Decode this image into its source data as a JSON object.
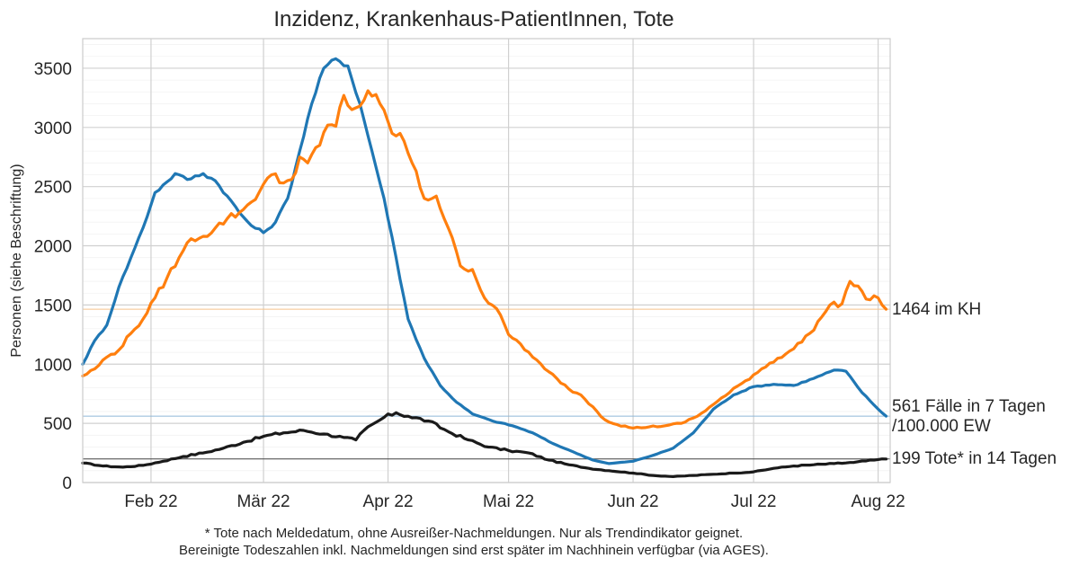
{
  "chart_data": {
    "type": "line",
    "title": "Inzidenz, Krankenhaus-PatientInnen, Tote",
    "ylabel": "Personen (siehe Beschriftung)",
    "xlabel": "",
    "x_start": "2022-01-15",
    "x_end": "2022-08-04",
    "ylim": [
      0,
      3750
    ],
    "y_ticks": [
      0,
      500,
      1000,
      1500,
      2000,
      2500,
      3000,
      3500
    ],
    "x_ticks": [
      {
        "date": "2022-02-01",
        "label": "Feb 22"
      },
      {
        "date": "2022-03-01",
        "label": "Mär 22"
      },
      {
        "date": "2022-04-01",
        "label": "Apr 22"
      },
      {
        "date": "2022-05-01",
        "label": "Mai 22"
      },
      {
        "date": "2022-06-01",
        "label": "Jun 22"
      },
      {
        "date": "2022-07-01",
        "label": "Jul 22"
      },
      {
        "date": "2022-08-01",
        "label": "Aug 22"
      }
    ],
    "grid": true,
    "colors": {
      "inzidenz": "#1f77b4",
      "kh": "#ff7f0e",
      "tote": "#1a1a1a"
    },
    "series": [
      {
        "key": "inzidenz",
        "points": [
          [
            "2022-01-15",
            1000
          ],
          [
            "2022-01-18",
            1200
          ],
          [
            "2022-01-21",
            1330
          ],
          [
            "2022-01-24",
            1650
          ],
          [
            "2022-01-27",
            1900
          ],
          [
            "2022-01-30",
            2150
          ],
          [
            "2022-02-02",
            2450
          ],
          [
            "2022-02-05",
            2540
          ],
          [
            "2022-02-07",
            2610
          ],
          [
            "2022-02-10",
            2560
          ],
          [
            "2022-02-14",
            2610
          ],
          [
            "2022-02-17",
            2550
          ],
          [
            "2022-02-20",
            2420
          ],
          [
            "2022-02-23",
            2280
          ],
          [
            "2022-02-26",
            2170
          ],
          [
            "2022-03-01",
            2110
          ],
          [
            "2022-03-04",
            2200
          ],
          [
            "2022-03-07",
            2400
          ],
          [
            "2022-03-10",
            2800
          ],
          [
            "2022-03-13",
            3200
          ],
          [
            "2022-03-16",
            3500
          ],
          [
            "2022-03-19",
            3580
          ],
          [
            "2022-03-22",
            3520
          ],
          [
            "2022-03-25",
            3200
          ],
          [
            "2022-03-28",
            2800
          ],
          [
            "2022-03-31",
            2400
          ],
          [
            "2022-04-03",
            1900
          ],
          [
            "2022-04-06",
            1380
          ],
          [
            "2022-04-10",
            1050
          ],
          [
            "2022-04-14",
            820
          ],
          [
            "2022-04-18",
            680
          ],
          [
            "2022-04-22",
            580
          ],
          [
            "2022-04-27",
            520
          ],
          [
            "2022-05-02",
            480
          ],
          [
            "2022-05-07",
            420
          ],
          [
            "2022-05-12",
            330
          ],
          [
            "2022-05-17",
            260
          ],
          [
            "2022-05-22",
            190
          ],
          [
            "2022-05-26",
            160
          ],
          [
            "2022-06-01",
            180
          ],
          [
            "2022-06-06",
            230
          ],
          [
            "2022-06-11",
            290
          ],
          [
            "2022-06-16",
            420
          ],
          [
            "2022-06-21",
            620
          ],
          [
            "2022-06-26",
            740
          ],
          [
            "2022-07-01",
            810
          ],
          [
            "2022-07-06",
            830
          ],
          [
            "2022-07-11",
            820
          ],
          [
            "2022-07-16",
            880
          ],
          [
            "2022-07-21",
            950
          ],
          [
            "2022-07-24",
            940
          ],
          [
            "2022-07-28",
            760
          ],
          [
            "2022-08-01",
            620
          ],
          [
            "2022-08-03",
            561
          ]
        ]
      },
      {
        "key": "kh",
        "points": [
          [
            "2022-01-15",
            900
          ],
          [
            "2022-01-18",
            960
          ],
          [
            "2022-01-21",
            1060
          ],
          [
            "2022-01-24",
            1120
          ],
          [
            "2022-01-27",
            1260
          ],
          [
            "2022-01-30",
            1380
          ],
          [
            "2022-02-02",
            1560
          ],
          [
            "2022-02-05",
            1730
          ],
          [
            "2022-02-08",
            1900
          ],
          [
            "2022-02-11",
            2060
          ],
          [
            "2022-02-14",
            2080
          ],
          [
            "2022-02-17",
            2150
          ],
          [
            "2022-02-20",
            2230
          ],
          [
            "2022-02-23",
            2280
          ],
          [
            "2022-02-26",
            2370
          ],
          [
            "2022-03-01",
            2520
          ],
          [
            "2022-03-03",
            2600
          ],
          [
            "2022-03-06",
            2530
          ],
          [
            "2022-03-08",
            2560
          ],
          [
            "2022-03-10",
            2750
          ],
          [
            "2022-03-12",
            2700
          ],
          [
            "2022-03-15",
            2850
          ],
          [
            "2022-03-17",
            3020
          ],
          [
            "2022-03-19",
            3010
          ],
          [
            "2022-03-21",
            3270
          ],
          [
            "2022-03-23",
            3150
          ],
          [
            "2022-03-25",
            3180
          ],
          [
            "2022-03-27",
            3310
          ],
          [
            "2022-03-30",
            3200
          ],
          [
            "2022-04-02",
            2950
          ],
          [
            "2022-04-04",
            2950
          ],
          [
            "2022-04-07",
            2700
          ],
          [
            "2022-04-10",
            2400
          ],
          [
            "2022-04-13",
            2420
          ],
          [
            "2022-04-16",
            2150
          ],
          [
            "2022-04-19",
            1830
          ],
          [
            "2022-04-22",
            1800
          ],
          [
            "2022-04-25",
            1560
          ],
          [
            "2022-04-28",
            1470
          ],
          [
            "2022-05-01",
            1250
          ],
          [
            "2022-05-04",
            1170
          ],
          [
            "2022-05-07",
            1060
          ],
          [
            "2022-05-10",
            960
          ],
          [
            "2022-05-13",
            880
          ],
          [
            "2022-05-16",
            790
          ],
          [
            "2022-05-19",
            740
          ],
          [
            "2022-05-22",
            640
          ],
          [
            "2022-05-25",
            530
          ],
          [
            "2022-05-28",
            490
          ],
          [
            "2022-06-01",
            460
          ],
          [
            "2022-06-05",
            470
          ],
          [
            "2022-06-09",
            480
          ],
          [
            "2022-06-13",
            500
          ],
          [
            "2022-06-17",
            560
          ],
          [
            "2022-06-21",
            660
          ],
          [
            "2022-06-25",
            760
          ],
          [
            "2022-06-29",
            860
          ],
          [
            "2022-07-03",
            960
          ],
          [
            "2022-07-07",
            1050
          ],
          [
            "2022-07-11",
            1130
          ],
          [
            "2022-07-15",
            1260
          ],
          [
            "2022-07-18",
            1400
          ],
          [
            "2022-07-20",
            1500
          ],
          [
            "2022-07-23",
            1510
          ],
          [
            "2022-07-25",
            1700
          ],
          [
            "2022-07-27",
            1660
          ],
          [
            "2022-07-29",
            1550
          ],
          [
            "2022-08-01",
            1560
          ],
          [
            "2022-08-03",
            1464
          ]
        ]
      },
      {
        "key": "tote",
        "points": [
          [
            "2022-01-15",
            165
          ],
          [
            "2022-01-20",
            140
          ],
          [
            "2022-01-25",
            130
          ],
          [
            "2022-01-30",
            145
          ],
          [
            "2022-02-04",
            180
          ],
          [
            "2022-02-09",
            220
          ],
          [
            "2022-02-14",
            250
          ],
          [
            "2022-02-19",
            290
          ],
          [
            "2022-02-24",
            340
          ],
          [
            "2022-03-01",
            390
          ],
          [
            "2022-03-06",
            420
          ],
          [
            "2022-03-11",
            440
          ],
          [
            "2022-03-16",
            410
          ],
          [
            "2022-03-21",
            380
          ],
          [
            "2022-03-24",
            360
          ],
          [
            "2022-03-26",
            440
          ],
          [
            "2022-03-31",
            550
          ],
          [
            "2022-04-03",
            590
          ],
          [
            "2022-04-06",
            560
          ],
          [
            "2022-04-11",
            520
          ],
          [
            "2022-04-16",
            430
          ],
          [
            "2022-04-21",
            360
          ],
          [
            "2022-04-26",
            300
          ],
          [
            "2022-05-01",
            270
          ],
          [
            "2022-05-06",
            250
          ],
          [
            "2022-05-11",
            190
          ],
          [
            "2022-05-16",
            150
          ],
          [
            "2022-05-21",
            120
          ],
          [
            "2022-05-26",
            100
          ],
          [
            "2022-06-01",
            80
          ],
          [
            "2022-06-06",
            60
          ],
          [
            "2022-06-11",
            50
          ],
          [
            "2022-06-16",
            60
          ],
          [
            "2022-06-21",
            70
          ],
          [
            "2022-06-26",
            80
          ],
          [
            "2022-07-01",
            90
          ],
          [
            "2022-07-06",
            120
          ],
          [
            "2022-07-11",
            140
          ],
          [
            "2022-07-16",
            150
          ],
          [
            "2022-07-21",
            160
          ],
          [
            "2022-07-26",
            170
          ],
          [
            "2022-07-31",
            190
          ],
          [
            "2022-08-03",
            199
          ]
        ]
      }
    ],
    "reference_lines": [
      {
        "series": "kh",
        "y": 1464
      },
      {
        "series": "inzidenz",
        "y": 561
      },
      {
        "series": "tote",
        "y": 199
      }
    ],
    "annotations": [
      {
        "series": "kh",
        "lines": [
          "1464 im KH"
        ]
      },
      {
        "series": "inzidenz",
        "lines": [
          "561 Fälle in 7 Tagen",
          "/100.000 EW"
        ]
      },
      {
        "series": "tote",
        "lines": [
          "199 Tote* in 14 Tagen"
        ]
      }
    ],
    "footnote": [
      "* Tote nach Meldedatum, ohne Ausreißer-Nachmeldungen. Nur als Trendindikator geignet.",
      "Bereinigte Todeszahlen inkl. Nachmeldungen sind erst später im Nachhinein verfügbar (via AGES)."
    ]
  }
}
